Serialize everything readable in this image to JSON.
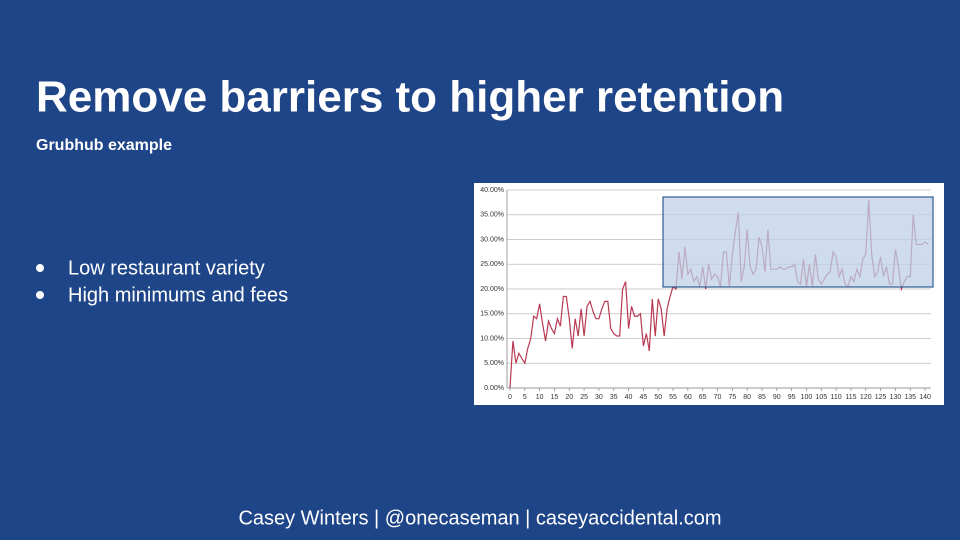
{
  "header": {
    "title": "Remove barriers to higher retention",
    "subtitle": "Grubhub example"
  },
  "bullets": [
    "Low restaurant variety",
    "High minimums and fees"
  ],
  "footer": "Casey Winters | @onecaseman | caseyaccidental.com",
  "chart_data": {
    "type": "line",
    "x": [
      0,
      1,
      2,
      3,
      4,
      5,
      6,
      7,
      8,
      9,
      10,
      11,
      12,
      13,
      14,
      15,
      16,
      17,
      18,
      19,
      20,
      21,
      22,
      23,
      24,
      25,
      26,
      27,
      28,
      29,
      30,
      31,
      32,
      33,
      34,
      35,
      36,
      37,
      38,
      39,
      40,
      41,
      42,
      43,
      44,
      45,
      46,
      47,
      48,
      49,
      50,
      51,
      52,
      53,
      54,
      55,
      56,
      57,
      58,
      59,
      60,
      61,
      62,
      63,
      64,
      65,
      66,
      67,
      68,
      69,
      70,
      71,
      72,
      73,
      74,
      75,
      76,
      77,
      78,
      79,
      80,
      81,
      82,
      83,
      84,
      85,
      86,
      87,
      88,
      89,
      90,
      91,
      92,
      93,
      94,
      95,
      96,
      97,
      98,
      99,
      100,
      101,
      102,
      103,
      104,
      105,
      106,
      107,
      108,
      109,
      110,
      111,
      112,
      113,
      114,
      115,
      116,
      117,
      118,
      119,
      120,
      121,
      122,
      123,
      124,
      125,
      126,
      127,
      128,
      129,
      130,
      131,
      132,
      133,
      134,
      135,
      136,
      137,
      138,
      139,
      140,
      141
    ],
    "series": [
      {
        "color": "#b83a52",
        "values": [
          0,
          9.5,
          5,
          7,
          6,
          5,
          8,
          10,
          14.5,
          14,
          17,
          13,
          9.5,
          13.5,
          12,
          11,
          14,
          12.5,
          18.5,
          18.5,
          14,
          8,
          14,
          10.5,
          16,
          10.5,
          16.5,
          17.5,
          15.5,
          14,
          14,
          16,
          17.5,
          17.5,
          12,
          11,
          10.5,
          10.5,
          20,
          21.5,
          12,
          16.5,
          14.5,
          14.5,
          15,
          8.5,
          11,
          7.5,
          18,
          10.5,
          18,
          16,
          10.5,
          16,
          18.5,
          20.5,
          20,
          27.5,
          22,
          28.5,
          23,
          24,
          21.5,
          22.5,
          20.5,
          24.5,
          20,
          25,
          22,
          23,
          22.5,
          20.5,
          27.5,
          27.5,
          20.5,
          27,
          31.5,
          35.5,
          21.5,
          24.5,
          32,
          24.5,
          23,
          24,
          30.5,
          28.5,
          23.5,
          32,
          24,
          24,
          24,
          24.5,
          24,
          24,
          24.5,
          24.5,
          25,
          21.5,
          21,
          26,
          20.5,
          25,
          20.5,
          27,
          22,
          21,
          22,
          23,
          23.5,
          27.5,
          26.5,
          22.5,
          24,
          21,
          20.5,
          22.5,
          21.5,
          24,
          22.5,
          26,
          27,
          38,
          27,
          22.5,
          23.5,
          26.5,
          22.5,
          24.5,
          21,
          21,
          28,
          24.5,
          20,
          21.5,
          22.5,
          22.5,
          35,
          29,
          29,
          29,
          29.5,
          29
        ]
      }
    ],
    "xlim": [
      -1,
      142
    ],
    "xticks": [
      0,
      5,
      10,
      15,
      20,
      25,
      30,
      35,
      40,
      45,
      50,
      55,
      60,
      65,
      70,
      75,
      80,
      85,
      90,
      95,
      100,
      105,
      110,
      115,
      120,
      125,
      130,
      135,
      140
    ],
    "ylim": [
      0,
      40
    ],
    "yticks": [
      {
        "value": 0,
        "label": "0.00%"
      },
      {
        "value": 5,
        "label": "5.00%"
      },
      {
        "value": 10,
        "label": "10.00%"
      },
      {
        "value": 15,
        "label": "15.00%"
      },
      {
        "value": 20,
        "label": "20.00%"
      },
      {
        "value": 25,
        "label": "25.00%"
      },
      {
        "value": 30,
        "label": "30.00%"
      },
      {
        "value": 35,
        "label": "35.00%"
      },
      {
        "value": 40,
        "label": "40.00%"
      }
    ],
    "grid": true
  }
}
